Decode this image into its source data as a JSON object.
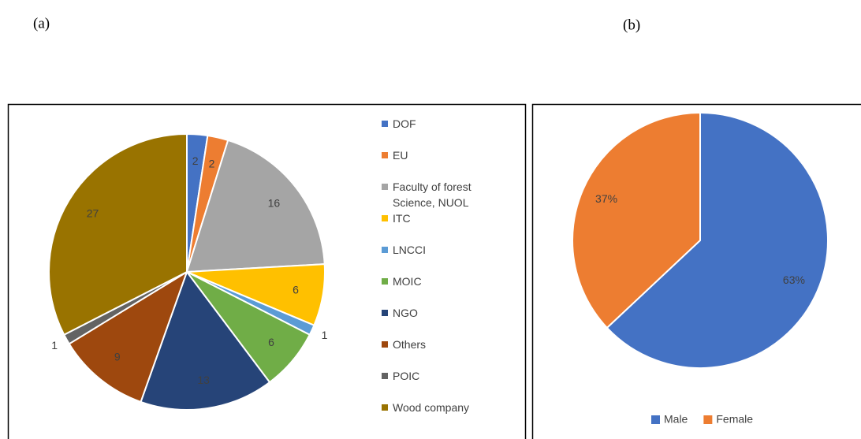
{
  "chart_data": [
    {
      "type": "pie",
      "label": "(a)",
      "categories": [
        "DOF",
        "EU",
        "Faculty of forest Science, NUOL",
        "ITC",
        "LNCCI",
        "MOIC",
        "NGO",
        "Others",
        "POIC",
        "Wood company"
      ],
      "values": [
        2,
        2,
        16,
        6,
        1,
        6,
        13,
        9,
        1,
        27
      ],
      "colors": [
        "#4472c4",
        "#ed7d31",
        "#a5a5a5",
        "#ffc000",
        "#5b9bd5",
        "#70ad47",
        "#264478",
        "#9e480e",
        "#636363",
        "#997300"
      ],
      "legend": "right"
    },
    {
      "type": "pie",
      "label": "(b)",
      "categories": [
        "Male",
        "Female"
      ],
      "values": [
        63,
        37
      ],
      "value_labels": [
        "63%",
        "37%"
      ],
      "colors": [
        "#4472c4",
        "#ed7d31"
      ],
      "legend": "bottom"
    }
  ]
}
